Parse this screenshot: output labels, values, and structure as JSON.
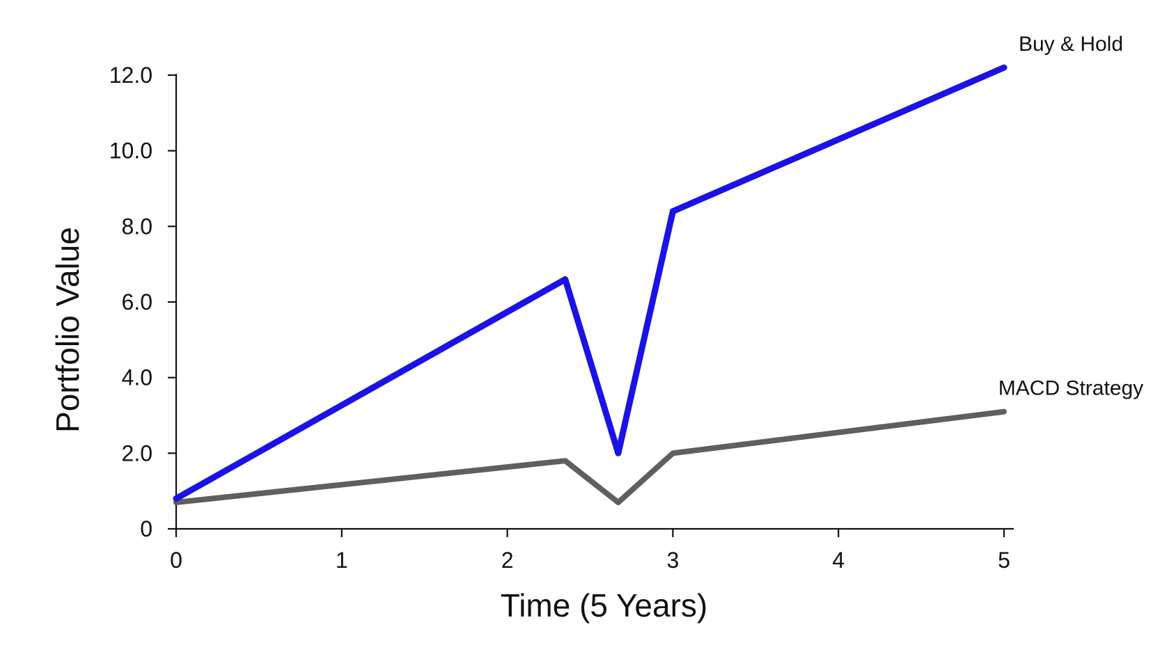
{
  "chart_data": {
    "type": "line",
    "title": "",
    "xlabel": "Time (5 Years)",
    "ylabel": "Portfolio Value",
    "xlim": [
      0,
      5
    ],
    "ylim": [
      0,
      12.0
    ],
    "x_ticks": [
      0,
      1,
      2,
      3,
      4,
      5
    ],
    "x_tick_labels": [
      "0",
      "1",
      "2",
      "3",
      "4",
      "5"
    ],
    "y_ticks": [
      0,
      2,
      4,
      6,
      8,
      10,
      12
    ],
    "y_tick_labels": [
      "0",
      "2.0",
      "4.0",
      "6.0",
      "8.0",
      "10.0",
      "12.0"
    ],
    "grid": false,
    "legend": "none",
    "series": [
      {
        "name": "Buy & Hold",
        "color": "#1a12e6",
        "x": [
          0,
          2.35,
          2.67,
          3.0,
          5.0
        ],
        "y": [
          0.8,
          6.6,
          2.0,
          8.4,
          12.2
        ]
      },
      {
        "name": "MACD Strategy",
        "color": "#5f5f5f",
        "x": [
          0,
          2.35,
          2.67,
          3.0,
          5.0
        ],
        "y": [
          0.7,
          1.8,
          0.7,
          2.0,
          3.1
        ]
      }
    ]
  }
}
